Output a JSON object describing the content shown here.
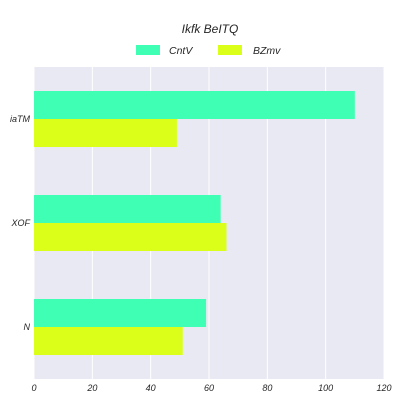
{
  "chart_data": {
    "type": "bar",
    "orientation": "horizontal",
    "title": "Ikfk BeITQ",
    "categories": [
      "iaTM",
      "XOF",
      "N"
    ],
    "series": [
      {
        "name": "CntV",
        "color": "#3fffb4",
        "values": [
          110,
          64,
          59
        ]
      },
      {
        "name": "BZmv",
        "color": "#dcff1a",
        "values": [
          49,
          66,
          51
        ]
      }
    ],
    "xlim": [
      0,
      120
    ],
    "xticks": [
      0,
      20,
      40,
      60,
      80,
      100,
      120
    ],
    "xlabel": "",
    "ylabel": "",
    "legend": "top-center",
    "plot_background": "#e8e9f2",
    "grid": true
  }
}
